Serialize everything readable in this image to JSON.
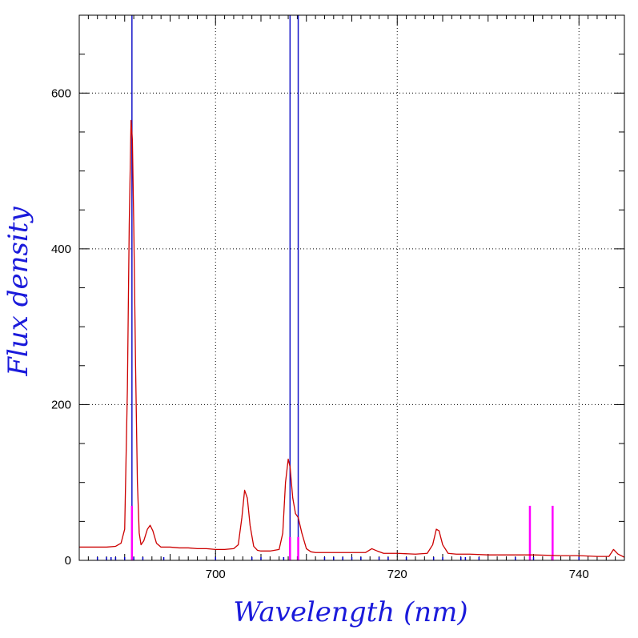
{
  "chart_data": {
    "type": "line",
    "title": "",
    "xlabel": "Wavelength (nm)",
    "ylabel": "Flux density",
    "xlim": [
      685,
      745
    ],
    "ylim": [
      0,
      700
    ],
    "grid": true,
    "grid_style": "dotted",
    "x_ticks": [
      {
        "value": 700,
        "label": "700"
      },
      {
        "value": 720,
        "label": "720"
      },
      {
        "value": 740,
        "label": "740"
      }
    ],
    "y_ticks": [
      {
        "value": 0,
        "label": "0"
      },
      {
        "value": 200,
        "label": "200"
      },
      {
        "value": 400,
        "label": "400"
      },
      {
        "value": 600,
        "label": "600"
      }
    ],
    "x_minor_step": 1,
    "y_minor_step": 50,
    "spectrum": {
      "color": "#cc0000",
      "x": [
        685.0,
        686.0,
        687.0,
        688.0,
        689.0,
        689.6,
        690.0,
        690.3,
        690.5,
        690.7,
        690.85,
        691.0,
        691.2,
        691.4,
        691.6,
        691.8,
        692.1,
        692.5,
        692.8,
        693.1,
        693.5,
        694.0,
        695.0,
        696.0,
        697.0,
        698.0,
        699.0,
        700.0,
        701.0,
        702.0,
        702.5,
        702.9,
        703.2,
        703.5,
        703.8,
        704.2,
        704.6,
        705.0,
        706.0,
        707.0,
        707.4,
        707.7,
        708.0,
        708.2,
        708.5,
        708.8,
        709.1,
        709.5,
        710.0,
        710.5,
        711.0,
        713.0,
        715.0,
        716.5,
        717.2,
        717.8,
        718.5,
        720.0,
        722.0,
        723.3,
        723.9,
        724.3,
        724.6,
        725.0,
        725.6,
        726.5,
        728.0,
        730.0,
        732.0,
        735.0,
        738.0,
        740.0,
        742.0,
        743.3,
        743.8,
        744.3,
        745.0
      ],
      "y": [
        17,
        17,
        17,
        17,
        18,
        22,
        40,
        220,
        430,
        565,
        540,
        430,
        250,
        100,
        35,
        20,
        25,
        40,
        45,
        38,
        22,
        17,
        17,
        16,
        16,
        15,
        15,
        14,
        14,
        15,
        20,
        55,
        90,
        80,
        45,
        18,
        13,
        12,
        12,
        14,
        35,
        100,
        130,
        120,
        80,
        60,
        55,
        35,
        15,
        11,
        10,
        10,
        10,
        10,
        15,
        12,
        9,
        9,
        8,
        9,
        20,
        40,
        38,
        20,
        9,
        8,
        8,
        7,
        7,
        7,
        6,
        6,
        5,
        5,
        14,
        8,
        4
      ]
    },
    "tall_lines": {
      "color": "#1515c8",
      "x": [
        690.8,
        708.2,
        709.1
      ]
    },
    "short_lines": {
      "color": "#ff00ff",
      "x": [
        690.8,
        708.2,
        709.1,
        734.6,
        737.1
      ],
      "heights": [
        70,
        30,
        30,
        70,
        70
      ]
    },
    "bottom_ticks": {
      "color": "#0000cc",
      "x": [
        687.0,
        688.0,
        688.5,
        689.0,
        690.0,
        691.0,
        692.0,
        694.3,
        700.0,
        704.0,
        705.0,
        707.5,
        708.2,
        709.1,
        712.0,
        713.0,
        714.0,
        715.0,
        716.0,
        718.0,
        719.0,
        721.0,
        724.0,
        725.0,
        727.0,
        727.5,
        729.0,
        733.0,
        735.0,
        740.0
      ]
    }
  }
}
